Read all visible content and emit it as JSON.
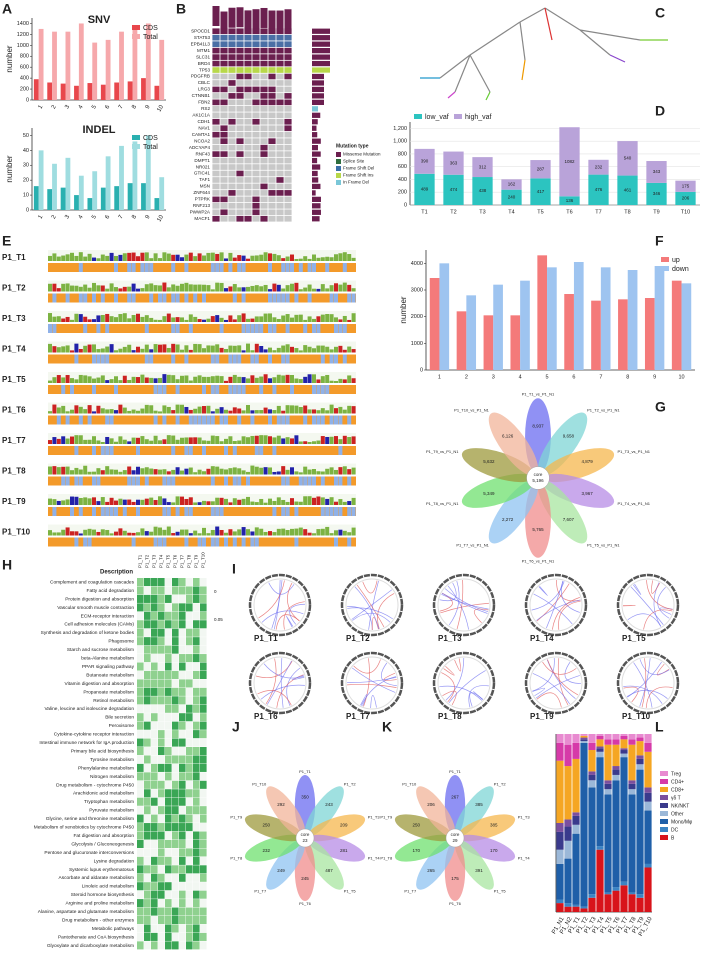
{
  "panels": [
    "A",
    "B",
    "C",
    "D",
    "E",
    "F",
    "G",
    "H",
    "I",
    "J",
    "K",
    "L"
  ],
  "chart_data": [
    {
      "type": "bar",
      "title": "SNV",
      "y_label": "number",
      "categories": [
        "1",
        "2",
        "3",
        "4",
        "5",
        "6",
        "7",
        "8",
        "9",
        "10"
      ],
      "series": [
        {
          "name": "CDS",
          "color": "#e8474c",
          "values": [
            380,
            320,
            300,
            260,
            310,
            280,
            320,
            340,
            400,
            260
          ]
        },
        {
          "name": "Total",
          "color": "#f6a8ab",
          "values": [
            1300,
            1250,
            1250,
            1400,
            1050,
            1100,
            1250,
            1350,
            1400,
            1100
          ]
        }
      ],
      "ylim": [
        0,
        1500
      ],
      "yticks": [
        0,
        200,
        400,
        600,
        800,
        1000,
        1200,
        1400
      ],
      "legend": "top-right"
    },
    {
      "type": "bar",
      "title": "INDEL",
      "y_label": "number",
      "categories": [
        "1",
        "2",
        "3",
        "4",
        "5",
        "6",
        "7",
        "8",
        "9",
        "10"
      ],
      "series": [
        {
          "name": "CDS",
          "color": "#2ab0b0",
          "values": [
            16,
            14,
            15,
            10,
            8,
            15,
            16,
            18,
            18,
            8
          ]
        },
        {
          "name": "Total",
          "color": "#9fdde0",
          "values": [
            40,
            31,
            35,
            23,
            26,
            36,
            43,
            46,
            50,
            22
          ]
        }
      ],
      "ylim": [
        0,
        55
      ],
      "yticks": [
        0,
        10,
        20,
        30,
        40,
        50
      ],
      "legend": "top-right"
    },
    {
      "type": "stacked_bar",
      "categories": [
        "T1",
        "T2",
        "T3",
        "T4",
        "T5",
        "T6",
        "T7",
        "T8",
        "T9",
        "T10"
      ],
      "series": [
        {
          "name": "low_vaf",
          "color": "#2cc4c0",
          "values": [
            489,
            474,
            438,
            240,
            417,
            136,
            476,
            461,
            346,
            206
          ]
        },
        {
          "name": "high_vaf",
          "color": "#b9a3d9",
          "values": [
            390,
            363,
            312,
            162,
            287,
            1082,
            232,
            540,
            343,
            175
          ]
        }
      ],
      "ylim": [
        0,
        1300
      ],
      "yticks": [
        0,
        200,
        400,
        600,
        800,
        {
          "value": 1000,
          "label": "1,000"
        },
        {
          "value": 1200,
          "label": "1,200"
        }
      ],
      "legend": "top-left",
      "data_labels": true,
      "grid": true
    },
    {
      "type": "bar",
      "y_label": "number",
      "categories": [
        "1",
        "2",
        "3",
        "4",
        "5",
        "6",
        "7",
        "8",
        "9",
        "10"
      ],
      "series": [
        {
          "name": "up",
          "color": "#f47a7a",
          "values": [
            3450,
            2200,
            2050,
            2050,
            4300,
            2850,
            2600,
            2650,
            2700,
            3350
          ]
        },
        {
          "name": "down",
          "color": "#9ec4f0",
          "values": [
            4000,
            2800,
            3200,
            3350,
            3850,
            4050,
            3850,
            3750,
            3900,
            3250
          ]
        }
      ],
      "ylim": [
        0,
        4500
      ],
      "yticks": [
        0,
        1000,
        2000,
        3000,
        4000
      ],
      "legend": "top-right"
    },
    {
      "type": "flower",
      "center_label": "core",
      "center_value": 5196,
      "center_value_label": "5,196",
      "categories": [
        "P1_T1_vs_P1_N1",
        "P1_T2_vs_P1_N1",
        "P1_T3_vs_P1_N1",
        "P1_T4_vs_P1_N1",
        "P1_T5_vs_P1_N1",
        "P1_T6_vs_P1_N1",
        "P1_T7_vs_P1_N1",
        "P1_T8_vs_P1_N1",
        "P1_T9_vs_P1_N1",
        "P1_T10_vs_P1_N1"
      ],
      "values": [
        8937,
        9658,
        4879,
        3967,
        7607,
        5765,
        2272,
        5349,
        5632,
        6126
      ],
      "value_labels": [
        "8,937",
        "9,658",
        "4,879",
        "3,967",
        "7,607",
        "5,765",
        "2,272",
        "5,349",
        "5,632",
        "6,126"
      ],
      "colors": [
        "#6b6cf0",
        "#7fd6d6",
        "#f6b74e",
        "#b78ce6",
        "#a8e6a0",
        "#f08c8c",
        "#8fc3f2",
        "#6fe06f",
        "#9e9a3c",
        "#f2b49a"
      ]
    },
    {
      "type": "flower",
      "center_label": "core",
      "center_value": 23,
      "categories": [
        "P1_T1",
        "P1_T2",
        "P1_T3",
        "P1_T4",
        "P1_T5",
        "P1_T6",
        "P1_T7",
        "P1_T8",
        "P1_T9",
        "P1_T10"
      ],
      "values": [
        350,
        243,
        209,
        281,
        487,
        245,
        249,
        232,
        250,
        292
      ],
      "colors": [
        "#6b6cf0",
        "#7fd6d6",
        "#f6b74e",
        "#b78ce6",
        "#a8e6a0",
        "#f08c8c",
        "#8fc3f2",
        "#6fe06f",
        "#9e9a3c",
        "#f2b49a"
      ]
    },
    {
      "type": "flower",
      "center_label": "core",
      "center_value": 29,
      "categories": [
        "P1_T1",
        "P1_T2",
        "P1_T3",
        "P1_T4",
        "P1_T5",
        "P1_T6",
        "P1_T7",
        "P1_T8",
        "P1_T9",
        "P1_T10"
      ],
      "values": [
        267,
        385,
        385,
        170,
        391,
        175,
        265,
        170,
        250,
        206
      ],
      "colors": [
        "#6b6cf0",
        "#7fd6d6",
        "#f6b74e",
        "#b78ce6",
        "#a8e6a0",
        "#f08c8c",
        "#8fc3f2",
        "#6fe06f",
        "#9e9a3c",
        "#f2b49a"
      ]
    },
    {
      "type": "stacked_bar",
      "categories": [
        "P1_N1",
        "P1_N2",
        "P1_T1",
        "P1_T2",
        "P1_T3",
        "P1_T4",
        "P1_T5",
        "P1_T6",
        "P1_T7",
        "P1_T8",
        "P1_T9",
        "P1_T10"
      ],
      "series": [
        {
          "name": "B",
          "color": "#d8141b",
          "values": [
            5,
            3,
            3,
            2,
            8,
            35,
            10,
            12,
            15,
            10,
            8,
            25
          ]
        },
        {
          "name": "DC",
          "color": "#3b84c4",
          "values": [
            2,
            2,
            1,
            1,
            2,
            2,
            1,
            2,
            2,
            1,
            2,
            2
          ]
        },
        {
          "name": "Mono/Mφ",
          "color": "#1f5fa8",
          "values": [
            20,
            25,
            40,
            92,
            60,
            50,
            55,
            60,
            70,
            55,
            70,
            30
          ]
        },
        {
          "name": "Other",
          "color": "#9bb8d8",
          "values": [
            8,
            10,
            5,
            1,
            4,
            3,
            3,
            3,
            2,
            3,
            3,
            5
          ]
        },
        {
          "name": "NK/NKT",
          "color": "#3a3a8c",
          "values": [
            10,
            8,
            5,
            1,
            3,
            2,
            3,
            3,
            2,
            3,
            3,
            5
          ]
        },
        {
          "name": "γδ T",
          "color": "#7b4f9e",
          "values": [
            5,
            4,
            2,
            1,
            2,
            1,
            2,
            2,
            1,
            2,
            2,
            3
          ]
        },
        {
          "name": "CD8+",
          "color": "#f5a623",
          "values": [
            35,
            30,
            30,
            1,
            12,
            4,
            20,
            12,
            5,
            20,
            8,
            20
          ]
        },
        {
          "name": "CD4+",
          "color": "#d63aa8",
          "values": [
            10,
            12,
            9,
            0,
            4,
            2,
            3,
            3,
            2,
            3,
            2,
            5
          ]
        },
        {
          "name": "Treg",
          "color": "#e88ad0",
          "values": [
            5,
            6,
            5,
            1,
            5,
            1,
            3,
            3,
            1,
            3,
            2,
            5
          ]
        }
      ],
      "ylim": [
        0,
        100
      ],
      "legend": "right"
    }
  ],
  "oncoplot": {
    "genes": [
      "SPOCD1",
      "STAT53",
      "EPB41L3",
      "MTM1",
      "SLC31",
      "BRD4",
      "TP53",
      "PDGFRB",
      "CBLC",
      "LRG3",
      "CTNNB1",
      "FBN2",
      "RS2",
      "AK1C1A",
      "CDH1",
      "NAV1",
      "CAMTA1",
      "NCOA2",
      "ADCYAP4",
      "RNF43",
      "DMPT1",
      "NR021",
      "GTIC41",
      "TAF1",
      "MSN",
      "ZNF644",
      "PTPRK",
      "RNF213",
      "PWWP2A",
      "MACF1"
    ],
    "legend_title": "Mutation type",
    "legend": [
      "Missense Mutation",
      "Splice Site",
      "Frame Shift Del",
      "Frame Shift Ins",
      "In Frame Del"
    ]
  },
  "cnv_profiles": {
    "labels": [
      "P1_T1",
      "P1_T2",
      "P1_T3",
      "P1_T4",
      "P1_T5",
      "P1_T6",
      "P1_T7",
      "P1_T8",
      "P1_T9",
      "P1_T10"
    ]
  },
  "pathways": {
    "header": "Description",
    "columns": [
      "P1_T1",
      "P1_T2",
      "P1_T3",
      "P1_T4",
      "P1_T5",
      "P1_T6",
      "P1_T7",
      "P1_T8",
      "P1_T9",
      "P1_T10"
    ],
    "scale_labels": [
      "0",
      "0.05"
    ],
    "terms": [
      "Complement and coagulation cascades",
      "Fatty acid degradation",
      "Protein digestion and absorption",
      "Vascular smooth muscle contraction",
      "ECM-receptor interaction",
      "Cell adhesion molecules (CAMs)",
      "Synthesis and degradation of ketone bodies",
      "Phagosome",
      "Starch and sucrose metabolism",
      "beta-Alanine metabolism",
      "PPAR signaling pathway",
      "Butanoate metabolism",
      "Vitamin digestion and absorption",
      "Propanoate metabolism",
      "Retinol metabolism",
      "Valine, leucine and isoleucine degradation",
      "Bile secretion",
      "Peroxisome",
      "Cytokine-cytokine receptor interaction",
      "Intestinal immune network for IgA production",
      "Primary bile acid biosynthesis",
      "Tyrosine metabolism",
      "Phenylalanine metabolism",
      "Nitrogen metabolism",
      "Drug metabolism - cytochrome P450",
      "Arachidonic acid metabolism",
      "Tryptophan metabolism",
      "Pyruvate metabolism",
      "Glycine, serine and threonine metabolism",
      "Metabolism of xenobiotics by cytochrome P450",
      "Fat digestion and absorption",
      "Glycolysis / Gluconeogenesis",
      "Pentose and glucuronate interconversions",
      "Lysine degradation",
      "Systemic lupus erythematosus",
      "Ascorbate and aldarate metabolism",
      "Linoleic acid metabolism",
      "Steroid hormone biosynthesis",
      "Arginine and proline metabolism",
      "Alanine, aspartate and glutamate metabolism",
      "Drug metabolism - other enzymes",
      "Metabolic pathways",
      "Pantothenate and CoA biosynthesis",
      "Glyoxylate and dicarboxylate metabolism"
    ]
  },
  "circos": {
    "labels": [
      "P1_T1",
      "P1_T2",
      "P1_T3",
      "P1_T4",
      "P1_T5",
      "P1_T6",
      "P1_T7",
      "P1_T8",
      "P1_T9",
      "P1_T10"
    ]
  }
}
